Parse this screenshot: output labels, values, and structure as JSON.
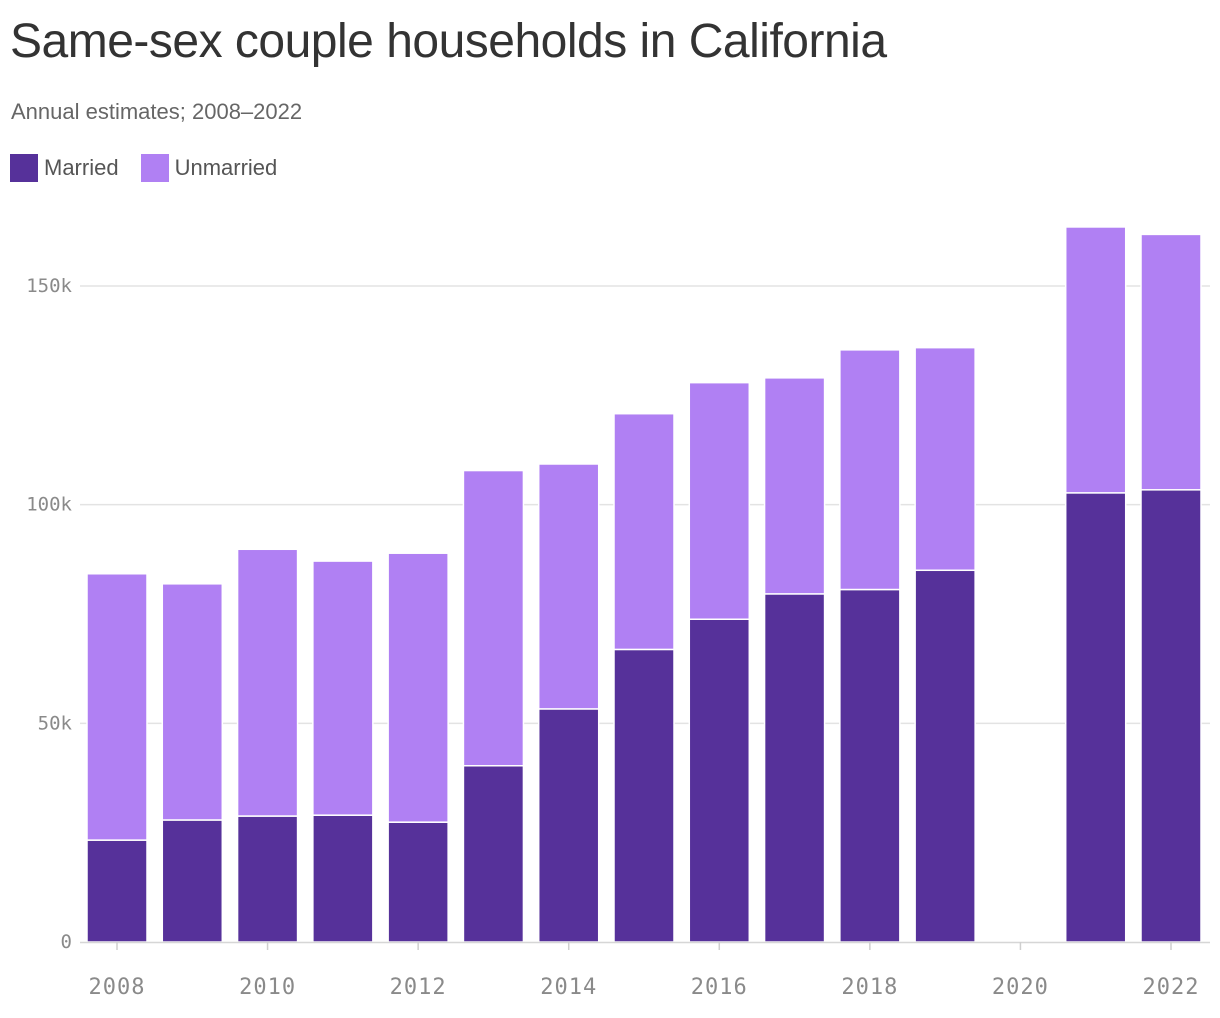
{
  "chart_data": {
    "type": "bar",
    "stacked": true,
    "title": "Same-sex couple households in California",
    "subtitle": "Annual estimates; 2008–2022",
    "x": [
      2008,
      2009,
      2010,
      2011,
      2012,
      2013,
      2014,
      2015,
      2016,
      2017,
      2018,
      2019,
      2021,
      2022
    ],
    "series": [
      {
        "name": "Married",
        "color": "#56319a",
        "values": [
          23300,
          27900,
          28800,
          29000,
          27400,
          40300,
          53300,
          66900,
          73800,
          79600,
          80600,
          85000,
          102700,
          103400
        ]
      },
      {
        "name": "Unmarried",
        "color": "#b080f3",
        "values": [
          60900,
          54000,
          61000,
          58100,
          61500,
          67500,
          56000,
          53900,
          54100,
          49400,
          54800,
          50900,
          60800,
          58400
        ]
      }
    ],
    "xlim": [
      2007.7,
      2022.5
    ],
    "ylim": [
      0,
      165000
    ],
    "yticks": [
      0,
      50000,
      100000,
      150000
    ],
    "ytick_labels": [
      "0",
      "50k",
      "100k",
      "150k"
    ],
    "xticks": [
      2008,
      2010,
      2012,
      2014,
      2016,
      2018,
      2020,
      2022
    ],
    "xtick_labels": [
      "2008",
      "2010",
      "2012",
      "2014",
      "2016",
      "2018",
      "2020",
      "2022"
    ],
    "grid": true,
    "legend_position": "top-left",
    "xlabel": "",
    "ylabel": ""
  }
}
